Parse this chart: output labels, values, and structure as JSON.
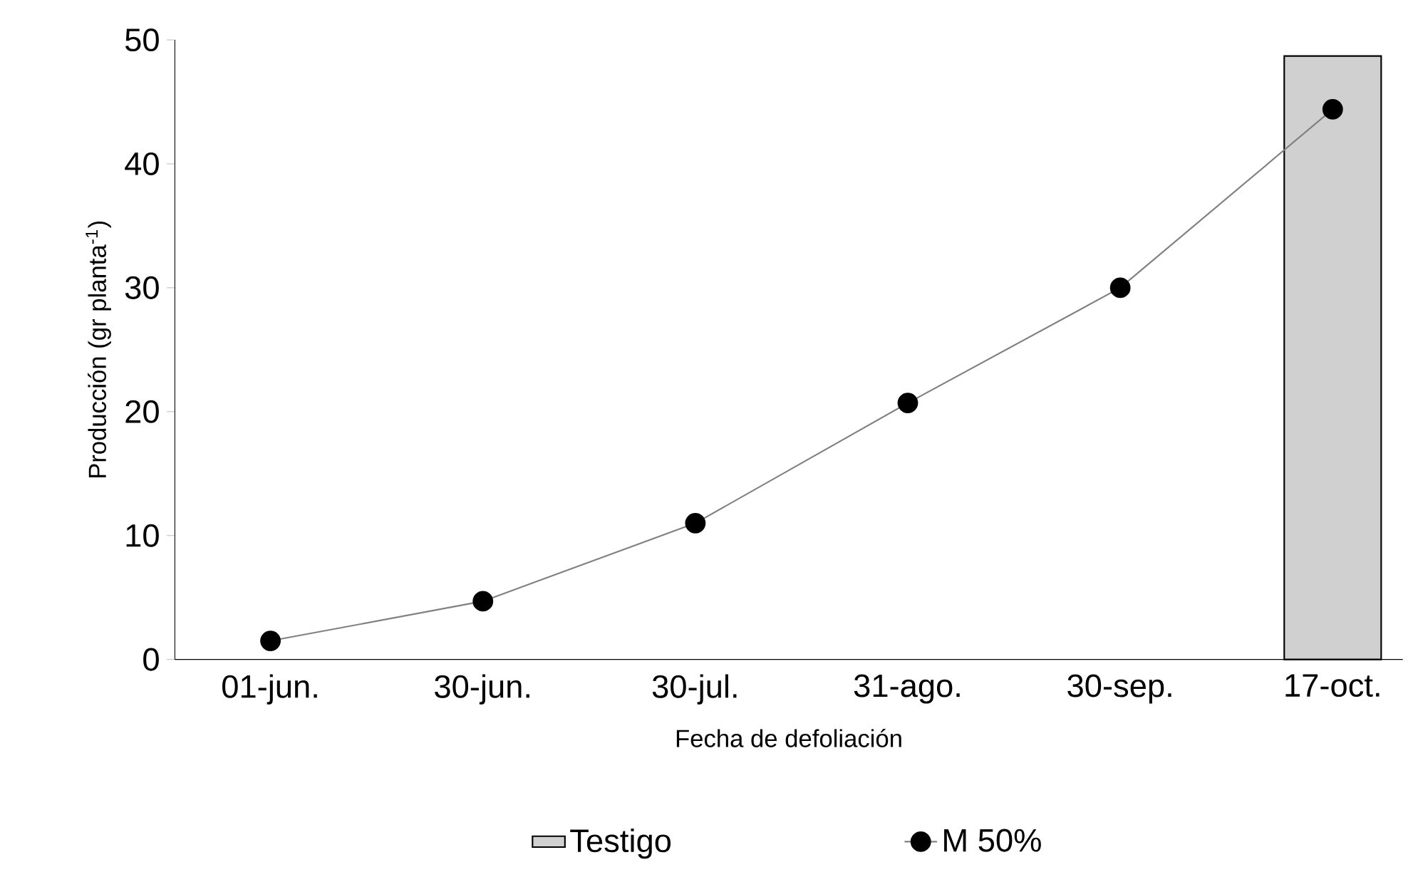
{
  "chart_data": {
    "type": "line",
    "xlabel": "Fecha de defoliación",
    "ylabel": "Producción (gr planta$^{-1}$)",
    "categories": [
      "01-jun.",
      "30-jun.",
      "30-jul.",
      "31-ago.",
      "30-sep.",
      "17-oct."
    ],
    "series": [
      {
        "name": "Testigo",
        "type": "bar",
        "color": "#d0d0d0",
        "values": [
          null,
          null,
          null,
          null,
          null,
          48.7
        ]
      },
      {
        "name": "M 50%",
        "color": "#808080",
        "values": [
          1.5,
          4.7,
          11.0,
          20.7,
          30.0,
          44.4
        ]
      }
    ],
    "ylim": [
      0,
      50
    ],
    "yticks": [
      0,
      10,
      20,
      30,
      40,
      50
    ],
    "grid": false,
    "legend": "bottom",
    "marker": "circle",
    "line_style": "solid"
  }
}
